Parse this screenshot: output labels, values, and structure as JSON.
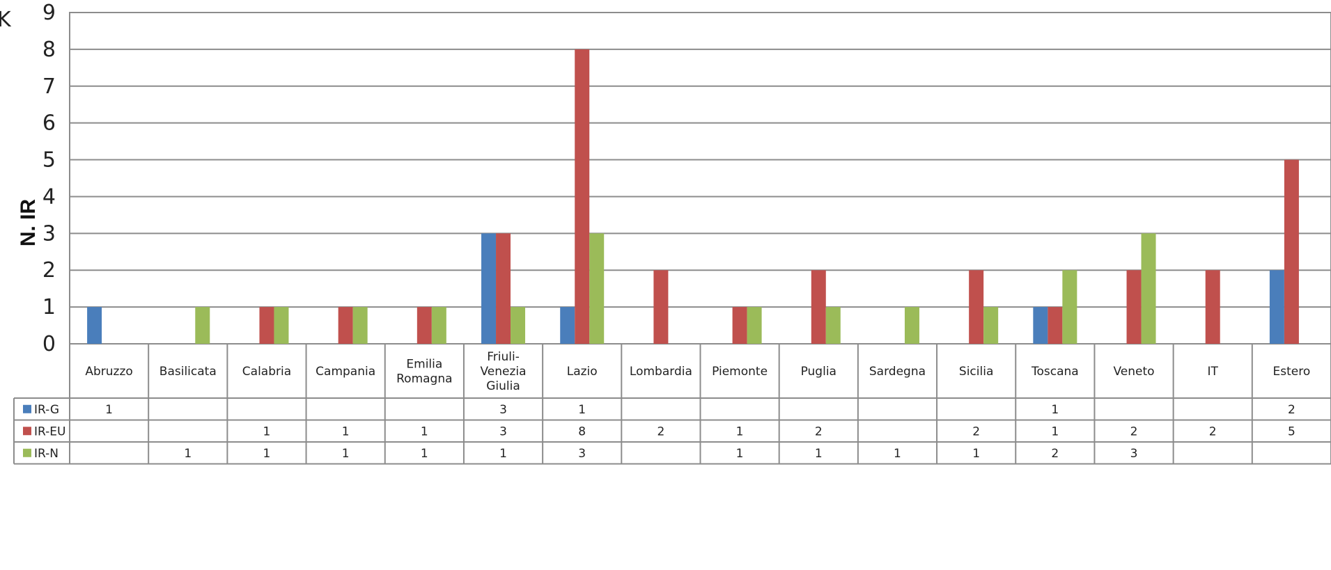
{
  "chart_data": {
    "type": "bar",
    "ylabel": "N. IR",
    "ylim": [
      0,
      9
    ],
    "yticks": [
      "0",
      "1",
      "2",
      "3",
      "4",
      "5",
      "6",
      "7",
      "8",
      "9"
    ],
    "grid": true,
    "legend_placement": "data-table-left",
    "categories": [
      [
        "Abruzzo"
      ],
      [
        "Basilicata"
      ],
      [
        "Calabria"
      ],
      [
        "Campania"
      ],
      [
        "Emilia",
        "Romagna"
      ],
      [
        "Friuli-",
        "Venezia",
        "Giulia"
      ],
      [
        "Lazio"
      ],
      [
        "Lombardia"
      ],
      [
        "Piemonte"
      ],
      [
        "Puglia"
      ],
      [
        "Sardegna"
      ],
      [
        "Sicilia"
      ],
      [
        "Toscana"
      ],
      [
        "Veneto"
      ],
      [
        "IT"
      ],
      [
        "Estero"
      ]
    ],
    "series": [
      {
        "name": "IR-G",
        "color": "#4a7ebb",
        "values": [
          1,
          0,
          0,
          0,
          0,
          3,
          1,
          0,
          0,
          0,
          0,
          0,
          1,
          0,
          0,
          2
        ]
      },
      {
        "name": "IR-EU",
        "color": "#c0504d",
        "values": [
          0,
          0,
          1,
          1,
          1,
          3,
          8,
          2,
          1,
          2,
          0,
          2,
          1,
          2,
          2,
          5
        ]
      },
      {
        "name": "IR-N",
        "color": "#9bbb59",
        "values": [
          0,
          1,
          1,
          1,
          1,
          1,
          3,
          0,
          1,
          1,
          1,
          1,
          2,
          3,
          0,
          0
        ]
      }
    ]
  },
  "corner_mark": "K"
}
